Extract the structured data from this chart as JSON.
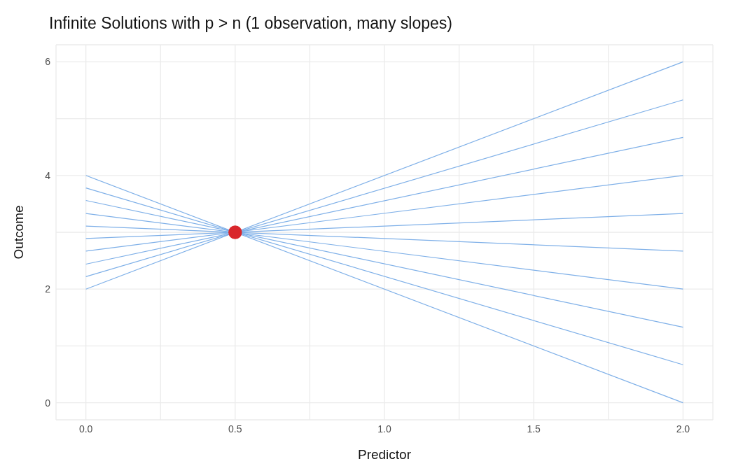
{
  "chart_data": {
    "type": "line",
    "title": "Infinite Solutions with p > n (1 observation, many slopes)",
    "xlabel": "Predictor",
    "ylabel": "Outcome",
    "xlim": [
      -0.1,
      2.1
    ],
    "xticks": [
      {
        "value": 0,
        "label": "0.0"
      },
      {
        "value": 0.25,
        "label": null
      },
      {
        "value": 0.5,
        "label": "0.5"
      },
      {
        "value": 0.75,
        "label": null
      },
      {
        "value": 1,
        "label": "1.0"
      },
      {
        "value": 1.25,
        "label": null
      },
      {
        "value": 1.5,
        "label": "1.5"
      },
      {
        "value": 1.75,
        "label": null
      },
      {
        "value": 2,
        "label": "2.0"
      }
    ],
    "ylim": [
      -0.3,
      6.3
    ],
    "yticks": [
      0,
      {
        "value": 1,
        "label": null
      },
      2,
      {
        "value": 3,
        "label": null
      },
      4,
      {
        "value": 5,
        "label": null
      },
      6
    ],
    "grid": true,
    "line_style": "solid",
    "marker": "none",
    "series": [
      {
        "color": "#7fb0e8",
        "x": [
          0,
          2
        ],
        "values": [
          4,
          0
        ]
      },
      {
        "color": "#7fb0e8",
        "x": [
          0,
          2
        ],
        "values": [
          3.78,
          0.67
        ]
      },
      {
        "color": "#7fb0e8",
        "x": [
          0,
          2
        ],
        "values": [
          3.56,
          1.33
        ]
      },
      {
        "color": "#7fb0e8",
        "x": [
          0,
          2
        ],
        "values": [
          3.33,
          2
        ]
      },
      {
        "color": "#7fb0e8",
        "x": [
          0,
          2
        ],
        "values": [
          3.11,
          2.67
        ]
      },
      {
        "color": "#7fb0e8",
        "x": [
          0,
          2
        ],
        "values": [
          2.89,
          3.33
        ]
      },
      {
        "color": "#7fb0e8",
        "x": [
          0,
          2
        ],
        "values": [
          2.67,
          4
        ]
      },
      {
        "color": "#7fb0e8",
        "x": [
          0,
          2
        ],
        "values": [
          2.44,
          4.67
        ]
      },
      {
        "color": "#7fb0e8",
        "x": [
          0,
          2
        ],
        "values": [
          2.22,
          5.33
        ]
      },
      {
        "color": "#7fb0e8",
        "x": [
          0,
          2
        ],
        "values": [
          2,
          6
        ]
      },
      {
        "type": "scatter",
        "marker": "circle",
        "color": "#d9262b",
        "x": [
          0.5
        ],
        "values": [
          3
        ]
      }
    ]
  }
}
